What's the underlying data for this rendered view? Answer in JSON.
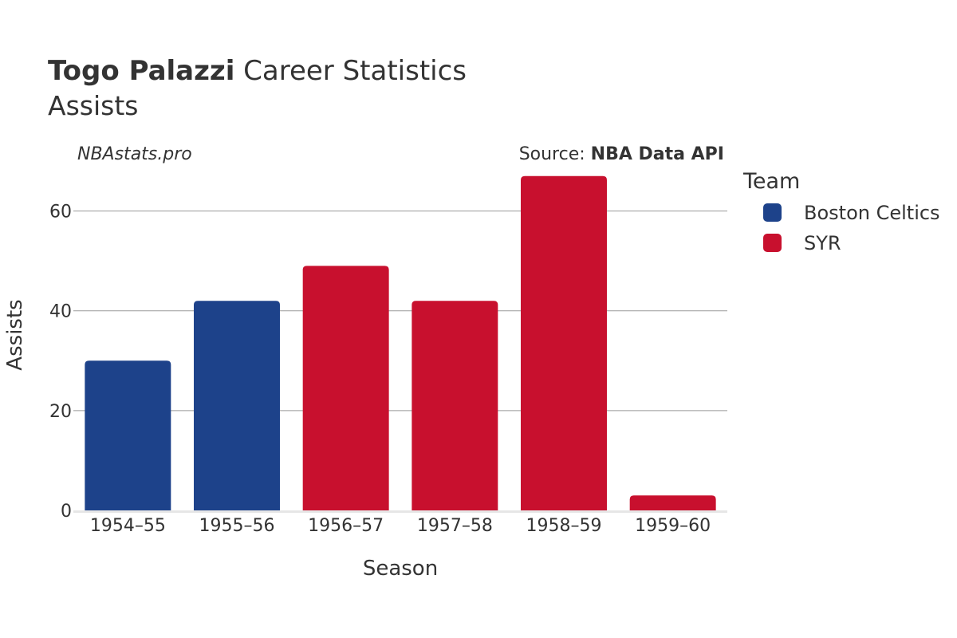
{
  "header": {
    "title_name": "Togo Palazzi",
    "title_rest": " Career Statistics",
    "subtitle": "Assists",
    "watermark": "NBAstats.pro",
    "source_prefix": "Source: ",
    "source_name": "NBA Data API"
  },
  "legend": {
    "title": "Team",
    "placement": "right",
    "items": [
      {
        "label": "Boston Celtics",
        "color": "#1d428a"
      },
      {
        "label": "SYR",
        "color": "#c8102e"
      }
    ]
  },
  "chart_data": {
    "type": "bar",
    "xlabel": "Season",
    "ylabel": "Assists",
    "ylim": [
      0,
      70
    ],
    "yticks": [
      0,
      20,
      40,
      60
    ],
    "grid": true,
    "categories": [
      "1954–55",
      "1955–56",
      "1956–57",
      "1957–58",
      "1958–59",
      "1959–60"
    ],
    "values": [
      30,
      42,
      49,
      42,
      67,
      3
    ],
    "teams": [
      "Boston Celtics",
      "Boston Celtics",
      "SYR",
      "SYR",
      "SYR",
      "SYR"
    ]
  }
}
